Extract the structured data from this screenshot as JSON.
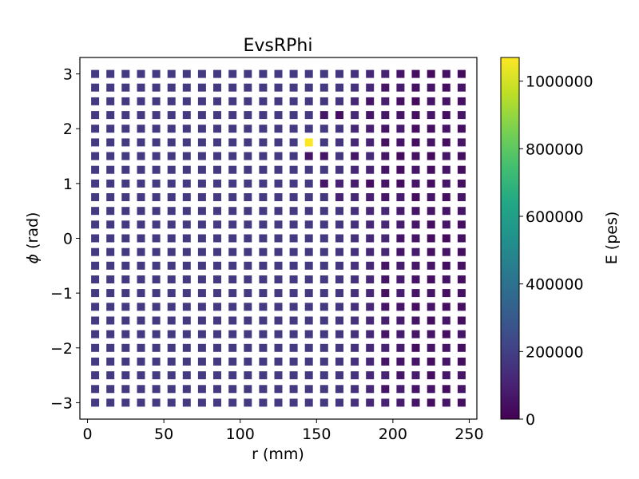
{
  "chart_data": {
    "type": "heatmap",
    "title": "EvsRPhi",
    "xlabel": "r (mm)",
    "ylabel_symbol": "ϕ",
    "ylabel_unit": " (rad)",
    "colorbar_label": "E (pes)",
    "colormap": "viridis",
    "xlim": [
      -5,
      255
    ],
    "ylim": [
      -3.3,
      3.3
    ],
    "clim": [
      0,
      1070000
    ],
    "xticks": [
      0,
      50,
      100,
      150,
      200,
      250
    ],
    "yticks": [
      3,
      2,
      1,
      0,
      -1,
      -2,
      -3
    ],
    "ytick_labels": [
      "3",
      "2",
      "1",
      "0",
      "−1",
      "−2",
      "−3"
    ],
    "colorbar_ticks": [
      0,
      200000,
      400000,
      600000,
      800000,
      1000000
    ],
    "colorbar_tick_labels": [
      "0",
      "200000",
      "400000",
      "600000",
      "800000",
      "1000000"
    ],
    "r_values": [
      5,
      15,
      25,
      35,
      45,
      55,
      65,
      75,
      85,
      95,
      105,
      115,
      125,
      135,
      145,
      155,
      165,
      175,
      185,
      195,
      205,
      215,
      225,
      235,
      245
    ],
    "phi_values": [
      3.0,
      2.75,
      2.5,
      2.25,
      2.0,
      1.75,
      1.5,
      1.25,
      1.0,
      0.75,
      0.5,
      0.25,
      0.0,
      -0.25,
      -0.5,
      -0.75,
      -1.0,
      -1.25,
      -1.5,
      -1.75,
      -2.0,
      -2.25,
      -2.5,
      -2.75,
      -3.0
    ],
    "energy_grid": [
      [
        180000,
        180000,
        180000,
        180000,
        180000,
        180000,
        180000,
        180000,
        180000,
        180000,
        180000,
        180000,
        180000,
        180000,
        180000,
        180000,
        170000,
        150000,
        120000,
        100000,
        60000,
        40000,
        30000,
        50000,
        30000
      ],
      [
        180000,
        180000,
        180000,
        180000,
        180000,
        180000,
        180000,
        180000,
        180000,
        180000,
        180000,
        180000,
        180000,
        180000,
        180000,
        180000,
        170000,
        150000,
        120000,
        60000,
        80000,
        50000,
        60000,
        40000,
        60000
      ],
      [
        180000,
        180000,
        180000,
        180000,
        180000,
        180000,
        180000,
        180000,
        180000,
        180000,
        180000,
        180000,
        180000,
        180000,
        180000,
        170000,
        160000,
        120000,
        60000,
        90000,
        50000,
        30000,
        60000,
        60000,
        50000
      ],
      [
        180000,
        180000,
        180000,
        180000,
        180000,
        180000,
        180000,
        180000,
        180000,
        180000,
        180000,
        180000,
        180000,
        180000,
        180000,
        60000,
        40000,
        120000,
        60000,
        60000,
        60000,
        40000,
        60000,
        40000,
        60000
      ],
      [
        180000,
        180000,
        180000,
        180000,
        180000,
        180000,
        180000,
        180000,
        180000,
        180000,
        180000,
        180000,
        180000,
        180000,
        180000,
        180000,
        170000,
        120000,
        90000,
        60000,
        80000,
        40000,
        40000,
        60000,
        40000
      ],
      [
        180000,
        180000,
        180000,
        180000,
        180000,
        180000,
        180000,
        180000,
        180000,
        180000,
        180000,
        180000,
        180000,
        180000,
        1070000,
        180000,
        160000,
        120000,
        100000,
        50000,
        60000,
        40000,
        60000,
        40000,
        60000
      ],
      [
        180000,
        180000,
        180000,
        180000,
        180000,
        180000,
        180000,
        180000,
        180000,
        180000,
        180000,
        180000,
        180000,
        180000,
        60000,
        60000,
        170000,
        60000,
        130000,
        60000,
        30000,
        50000,
        30000,
        60000,
        40000
      ],
      [
        180000,
        180000,
        180000,
        180000,
        180000,
        180000,
        180000,
        180000,
        180000,
        180000,
        180000,
        180000,
        180000,
        180000,
        180000,
        180000,
        160000,
        120000,
        100000,
        60000,
        40000,
        60000,
        40000,
        60000,
        40000
      ],
      [
        180000,
        180000,
        180000,
        180000,
        180000,
        180000,
        180000,
        180000,
        180000,
        180000,
        180000,
        180000,
        180000,
        180000,
        180000,
        60000,
        100000,
        80000,
        40000,
        60000,
        40000,
        60000,
        40000,
        60000,
        40000
      ],
      [
        180000,
        180000,
        180000,
        180000,
        180000,
        180000,
        180000,
        180000,
        180000,
        180000,
        180000,
        180000,
        180000,
        180000,
        180000,
        170000,
        100000,
        120000,
        90000,
        60000,
        80000,
        40000,
        60000,
        40000,
        60000
      ],
      [
        180000,
        180000,
        180000,
        180000,
        180000,
        180000,
        180000,
        180000,
        180000,
        180000,
        180000,
        180000,
        180000,
        180000,
        180000,
        180000,
        170000,
        150000,
        120000,
        120000,
        80000,
        60000,
        60000,
        60000,
        60000
      ],
      [
        180000,
        180000,
        180000,
        180000,
        180000,
        180000,
        180000,
        180000,
        180000,
        180000,
        180000,
        180000,
        180000,
        180000,
        180000,
        180000,
        170000,
        150000,
        120000,
        110000,
        80000,
        60000,
        40000,
        60000,
        40000
      ],
      [
        180000,
        180000,
        180000,
        180000,
        180000,
        180000,
        180000,
        180000,
        180000,
        180000,
        180000,
        180000,
        180000,
        180000,
        180000,
        180000,
        170000,
        150000,
        120000,
        120000,
        60000,
        60000,
        40000,
        30000,
        50000
      ],
      [
        180000,
        180000,
        180000,
        180000,
        180000,
        180000,
        180000,
        180000,
        180000,
        180000,
        180000,
        180000,
        180000,
        180000,
        180000,
        180000,
        170000,
        150000,
        120000,
        120000,
        60000,
        80000,
        50000,
        60000,
        40000
      ],
      [
        180000,
        180000,
        180000,
        180000,
        180000,
        180000,
        180000,
        180000,
        180000,
        180000,
        180000,
        180000,
        180000,
        180000,
        180000,
        180000,
        170000,
        150000,
        120000,
        60000,
        80000,
        60000,
        60000,
        40000,
        50000
      ],
      [
        180000,
        180000,
        180000,
        180000,
        180000,
        180000,
        180000,
        180000,
        180000,
        180000,
        180000,
        180000,
        180000,
        180000,
        180000,
        180000,
        170000,
        150000,
        120000,
        60000,
        80000,
        60000,
        40000,
        60000,
        40000
      ],
      [
        180000,
        180000,
        180000,
        180000,
        180000,
        180000,
        180000,
        180000,
        180000,
        180000,
        180000,
        180000,
        180000,
        180000,
        180000,
        180000,
        170000,
        150000,
        120000,
        50000,
        90000,
        60000,
        60000,
        40000,
        50000
      ],
      [
        180000,
        180000,
        180000,
        180000,
        180000,
        180000,
        180000,
        180000,
        180000,
        180000,
        180000,
        180000,
        180000,
        180000,
        180000,
        180000,
        170000,
        150000,
        120000,
        60000,
        60000,
        40000,
        60000,
        40000,
        40000
      ],
      [
        180000,
        180000,
        180000,
        180000,
        180000,
        180000,
        180000,
        180000,
        180000,
        180000,
        180000,
        180000,
        180000,
        180000,
        180000,
        180000,
        170000,
        150000,
        120000,
        90000,
        80000,
        60000,
        40000,
        60000,
        40000
      ],
      [
        180000,
        180000,
        180000,
        180000,
        180000,
        180000,
        180000,
        180000,
        180000,
        180000,
        180000,
        180000,
        180000,
        180000,
        180000,
        180000,
        170000,
        150000,
        120000,
        60000,
        80000,
        60000,
        60000,
        40000,
        60000
      ],
      [
        180000,
        180000,
        180000,
        180000,
        180000,
        180000,
        180000,
        180000,
        180000,
        180000,
        180000,
        180000,
        180000,
        180000,
        180000,
        180000,
        170000,
        150000,
        120000,
        100000,
        80000,
        40000,
        60000,
        60000,
        40000
      ],
      [
        180000,
        180000,
        180000,
        180000,
        180000,
        180000,
        180000,
        180000,
        180000,
        180000,
        180000,
        180000,
        180000,
        180000,
        180000,
        180000,
        170000,
        150000,
        120000,
        60000,
        60000,
        60000,
        40000,
        60000,
        40000
      ],
      [
        180000,
        180000,
        180000,
        180000,
        180000,
        180000,
        180000,
        180000,
        180000,
        180000,
        180000,
        180000,
        180000,
        180000,
        180000,
        180000,
        170000,
        150000,
        120000,
        100000,
        60000,
        80000,
        40000,
        60000,
        60000
      ],
      [
        180000,
        180000,
        180000,
        180000,
        180000,
        180000,
        180000,
        180000,
        180000,
        180000,
        180000,
        180000,
        180000,
        180000,
        180000,
        180000,
        170000,
        150000,
        120000,
        60000,
        90000,
        60000,
        60000,
        40000,
        60000
      ],
      [
        180000,
        180000,
        180000,
        180000,
        180000,
        180000,
        180000,
        180000,
        180000,
        180000,
        180000,
        180000,
        180000,
        180000,
        180000,
        180000,
        170000,
        150000,
        120000,
        100000,
        80000,
        60000,
        40000,
        60000,
        40000
      ]
    ]
  }
}
